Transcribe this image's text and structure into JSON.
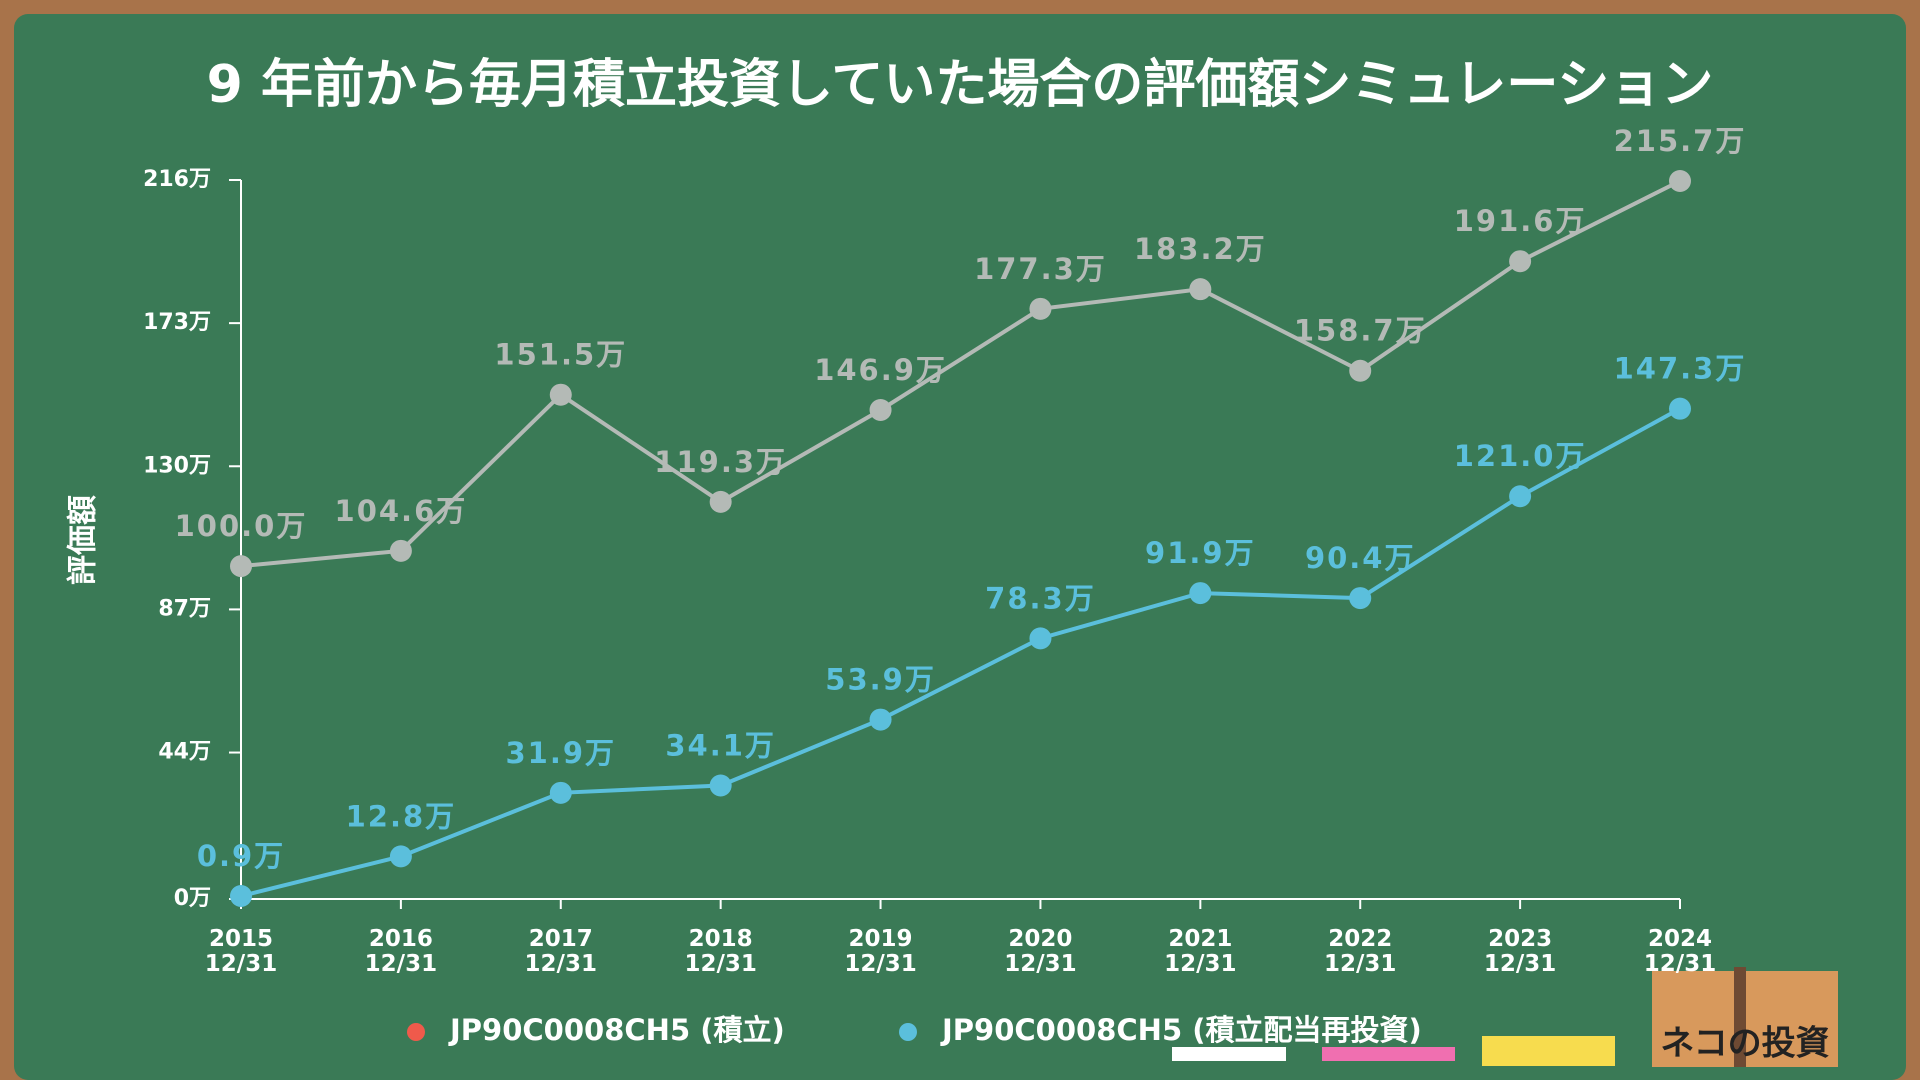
{
  "chart_data": {
    "type": "line",
    "title": "9 年前から毎月積立投資していた場合の評価額シミュレーション",
    "y_label": "評価額",
    "categories": [
      "2015\n12/31",
      "2016\n12/31",
      "2017\n12/31",
      "2018\n12/31",
      "2019\n12/31",
      "2020\n12/31",
      "2021\n12/31",
      "2022\n12/31",
      "2023\n12/31",
      "2024\n12/31"
    ],
    "ylim": [
      0,
      216
    ],
    "yticks": [
      {
        "value": 0,
        "label": "0万"
      },
      {
        "value": 44,
        "label": "44万"
      },
      {
        "value": 87,
        "label": "87万"
      },
      {
        "value": 130,
        "label": "130万"
      },
      {
        "value": 173,
        "label": "173万"
      },
      {
        "value": 216,
        "label": "216万"
      }
    ],
    "series": [
      {
        "name": "JP90C0008CH5 (積立)",
        "color": "#b4bab6",
        "legend_color": "#ef5a4b",
        "values": [
          100.0,
          104.6,
          151.5,
          119.3,
          146.9,
          177.3,
          183.2,
          158.7,
          191.6,
          215.7
        ],
        "value_labels": [
          "100.0万",
          "104.6万",
          "151.5万",
          "119.3万",
          "146.9万",
          "177.3万",
          "183.2万",
          "158.7万",
          "191.6万",
          "215.7万"
        ]
      },
      {
        "name": "JP90C0008CH5 (積立配当再投資)",
        "color": "#5bbfdc",
        "legend_color": "#5bbfdc",
        "values": [
          0.9,
          12.8,
          31.9,
          34.1,
          53.9,
          78.3,
          91.9,
          90.4,
          121.0,
          147.3
        ],
        "value_labels": [
          "0.9万",
          "12.8万",
          "31.9万",
          "34.1万",
          "53.9万",
          "78.3万",
          "91.9万",
          "90.4万",
          "121.0万",
          "147.3万"
        ]
      }
    ],
    "brand": "ネコの投資"
  }
}
